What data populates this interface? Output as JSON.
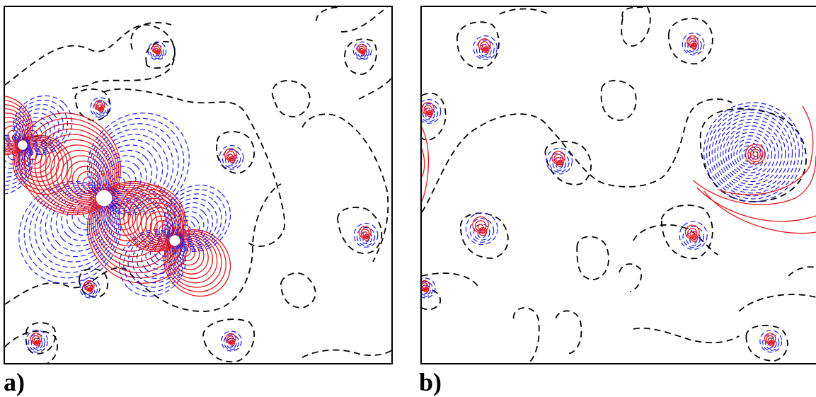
{
  "panels": [
    {
      "id": "a",
      "label": "a)"
    },
    {
      "id": "b",
      "label": "b)"
    }
  ],
  "colors": {
    "positive_contour": "#e8161b",
    "negative_contour": "#1a1ae8",
    "zero_contour": "#000000"
  }
}
